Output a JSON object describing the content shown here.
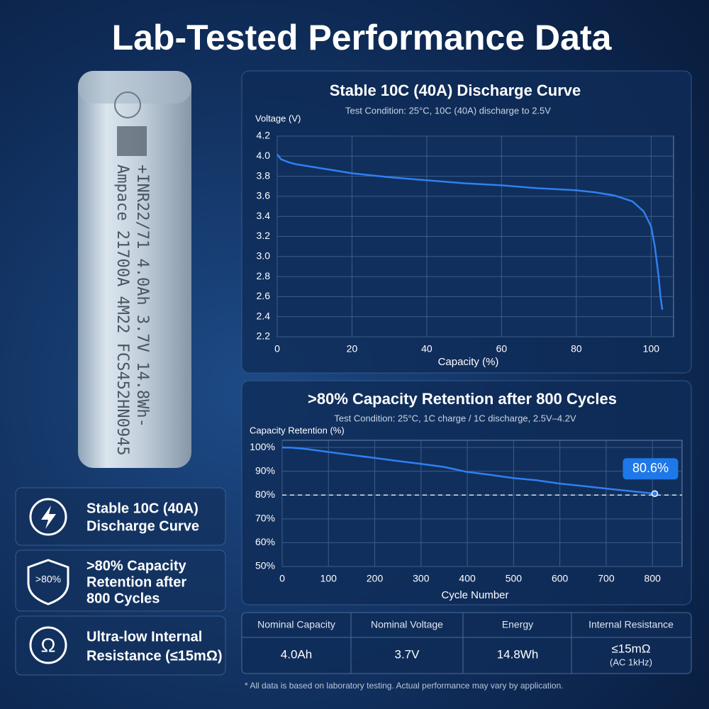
{
  "header": {
    "title": "Lab-Tested Performance Data"
  },
  "battery": {
    "lines": [
      "+INR22/71  4.0Ah 3.7V 14.8Wh-",
      "Ampace 21700A 4M22 FCS452HN0945"
    ]
  },
  "features": [
    {
      "lines": [
        "Stable 10C (40A)",
        "Discharge Curve"
      ]
    },
    {
      "icon_text": ">80%",
      "lines": [
        ">80% Capacity",
        "Retention after",
        "800 Cycles"
      ]
    },
    {
      "icon_text": "Ω",
      "lines": [
        "Ultra-low Internal",
        "Resistance (≤15mΩ)"
      ]
    }
  ],
  "chart_data": [
    {
      "type": "line",
      "title": "Stable 10C (40A) Discharge Curve",
      "subtitle": "Test Condition:  25°C, 10C (40A) discharge to 2.5V",
      "y_label": "Voltage (V)",
      "x_label": "Capacity (%)",
      "x": [
        0,
        1,
        3,
        5,
        10,
        20,
        30,
        40,
        50,
        60,
        70,
        80,
        85,
        90,
        95,
        98,
        100,
        101,
        102,
        102.5,
        103
      ],
      "series": [
        {
          "color": "#2f80f0",
          "values": [
            4.02,
            3.97,
            3.94,
            3.92,
            3.89,
            3.83,
            3.79,
            3.76,
            3.73,
            3.71,
            3.68,
            3.66,
            3.64,
            3.61,
            3.55,
            3.45,
            3.3,
            3.1,
            2.8,
            2.6,
            2.47
          ]
        }
      ],
      "xlim": [
        0,
        106
      ],
      "xticks": [
        0,
        20,
        40,
        60,
        80,
        100
      ],
      "ylim": [
        2.2,
        4.2
      ],
      "yticks": [
        2.2,
        2.4,
        2.6,
        2.8,
        {
          "value": 3,
          "label": "3.0"
        },
        3.2,
        3.4,
        3.6,
        3.8,
        {
          "value": 4,
          "label": "4.0"
        },
        4.2
      ],
      "grid": true
    },
    {
      "type": "line",
      "title": ">80% Capacity Retention after 800 Cycles",
      "subtitle": "Test Condition:  25°C, 1C charge / 1C discharge, 2.5V–4.2V",
      "y_label": "Capacity Retention (%)",
      "x_label": "Cycle Number",
      "x": [
        0,
        20,
        50,
        100,
        150,
        200,
        250,
        300,
        350,
        400,
        450,
        500,
        550,
        600,
        650,
        700,
        750,
        805
      ],
      "series": [
        {
          "color": "#2f80f0",
          "values": [
            100,
            99.9,
            99.4,
            98.1,
            96.8,
            95.6,
            94.3,
            93.1,
            91.8,
            89.7,
            88.5,
            87.1,
            86.2,
            84.8,
            83.8,
            82.7,
            81.7,
            80.6
          ],
          "value_labels": [
            null,
            null,
            null,
            null,
            null,
            null,
            null,
            null,
            null,
            null,
            null,
            null,
            null,
            null,
            null,
            null,
            null,
            "80.6%"
          ]
        }
      ],
      "ref_line": 80,
      "xlim": [
        0,
        864
      ],
      "xticks": [
        0,
        100,
        200,
        300,
        400,
        500,
        600,
        700,
        800
      ],
      "ylim": [
        50,
        103
      ],
      "yticks": [
        {
          "value": 50,
          "label": "50%"
        },
        {
          "value": 60,
          "label": "60%"
        },
        {
          "value": 70,
          "label": "70%"
        },
        {
          "value": 80,
          "label": "80%"
        },
        {
          "value": 90,
          "label": "90%"
        },
        {
          "value": 100,
          "label": "100%"
        }
      ],
      "grid": true
    }
  ],
  "table": {
    "header": [
      "Nominal Capacity",
      "Nominal Voltage",
      "Energy",
      "Internal Resistance"
    ],
    "rows": [
      [
        "4.0Ah",
        "3.7V",
        "14.8Wh",
        "≤15mΩ"
      ]
    ],
    "notes": [
      null,
      null,
      null,
      "(AC 1kHz)"
    ]
  },
  "footnote": "* All data is based on laboratory testing. Actual performance may vary by application."
}
